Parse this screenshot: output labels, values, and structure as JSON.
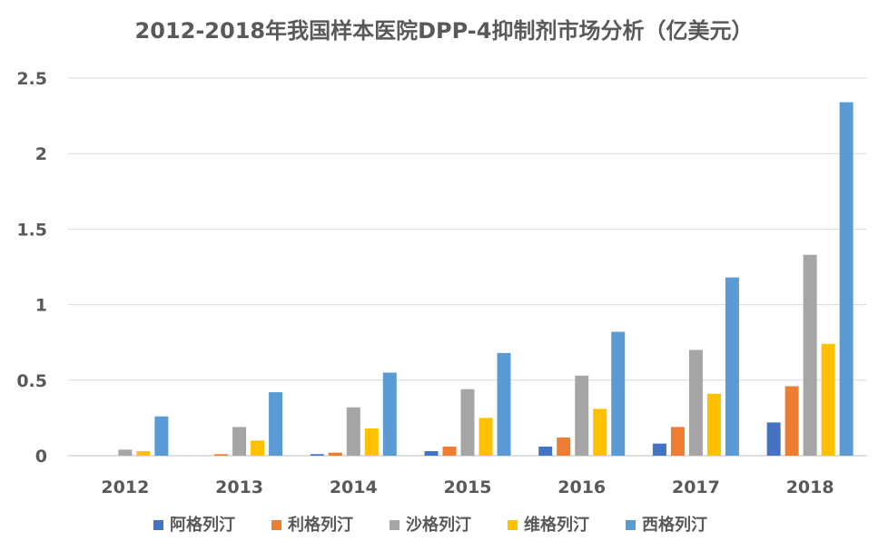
{
  "chart_data": {
    "type": "bar",
    "title": "2012-2018年我国样本医院DPP-4抑制剂市场分析（亿美元）",
    "xlabel": "",
    "ylabel": "",
    "categories": [
      "2012",
      "2013",
      "2014",
      "2015",
      "2016",
      "2017",
      "2018"
    ],
    "ylim": [
      0,
      2.5
    ],
    "yticks": [
      "0",
      "0.5",
      "1",
      "1.5",
      "2",
      "2.5"
    ],
    "grid": true,
    "legend_position": "bottom",
    "series": [
      {
        "name": "阿格列汀",
        "color": "#4472c4",
        "values": [
          0,
          0,
          0.01,
          0.03,
          0.06,
          0.08,
          0.22
        ]
      },
      {
        "name": "利格列汀",
        "color": "#ed7d31",
        "values": [
          0,
          0.01,
          0.02,
          0.06,
          0.12,
          0.19,
          0.46
        ]
      },
      {
        "name": "沙格列汀",
        "color": "#a5a5a5",
        "values": [
          0.04,
          0.19,
          0.32,
          0.44,
          0.53,
          0.7,
          1.33
        ]
      },
      {
        "name": "维格列汀",
        "color": "#ffc000",
        "values": [
          0.03,
          0.1,
          0.18,
          0.25,
          0.31,
          0.41,
          0.74
        ]
      },
      {
        "name": "西格列汀",
        "color": "#5b9bd5",
        "values": [
          0.26,
          0.42,
          0.55,
          0.68,
          0.82,
          1.18,
          2.34
        ]
      }
    ]
  }
}
